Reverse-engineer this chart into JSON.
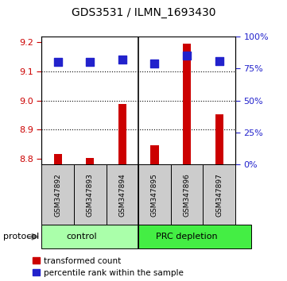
{
  "title": "GDS3531 / ILMN_1693430",
  "samples": [
    "GSM347892",
    "GSM347893",
    "GSM347894",
    "GSM347895",
    "GSM347896",
    "GSM347897"
  ],
  "transformed_counts": [
    8.815,
    8.803,
    8.988,
    8.845,
    9.195,
    8.952
  ],
  "percentile_ranks": [
    80,
    80,
    82,
    79,
    85,
    81
  ],
  "ylim_left": [
    8.78,
    9.22
  ],
  "ylim_right": [
    0,
    100
  ],
  "yticks_left": [
    8.8,
    8.9,
    9.0,
    9.1,
    9.2
  ],
  "yticks_right": [
    0,
    25,
    50,
    75,
    100
  ],
  "grid_values": [
    8.9,
    9.0,
    9.1
  ],
  "bar_color": "#cc0000",
  "dot_color": "#2222cc",
  "control_color": "#aaffaa",
  "prc_color": "#44ee44",
  "sample_bg": "#cccccc",
  "left_tick_color": "#cc0000",
  "right_tick_color": "#2222cc",
  "bar_width": 0.25,
  "dot_size": 55,
  "legend_items": [
    "transformed count",
    "percentile rank within the sample"
  ],
  "legend_colors": [
    "#cc0000",
    "#2222cc"
  ],
  "group_separator": 2.5,
  "n_samples": 6
}
